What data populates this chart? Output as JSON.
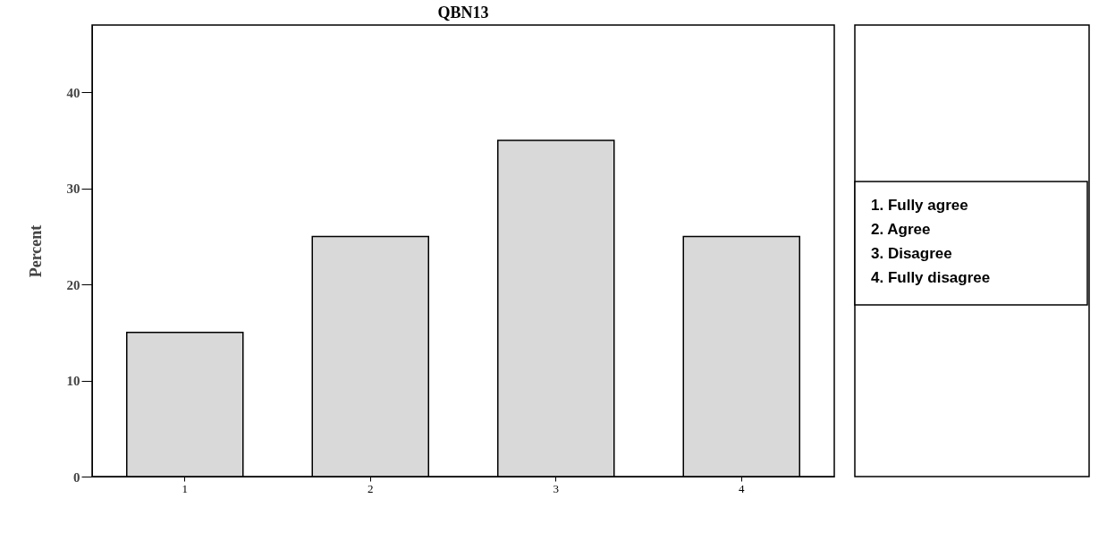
{
  "chart_data": {
    "type": "bar",
    "title": "QBN13",
    "ylabel": "Percent",
    "categories": [
      "1",
      "2",
      "3",
      "4"
    ],
    "values": [
      15,
      25,
      35,
      25
    ],
    "color": "#d9d9d9",
    "ylim": [
      0,
      47
    ],
    "yticks": [
      0,
      10,
      20,
      30,
      40
    ],
    "grid": false,
    "annotations": [
      "1.  Fully agree",
      "2.  Agree",
      "3.  Disagree",
      "4.  Fully disagree"
    ]
  }
}
